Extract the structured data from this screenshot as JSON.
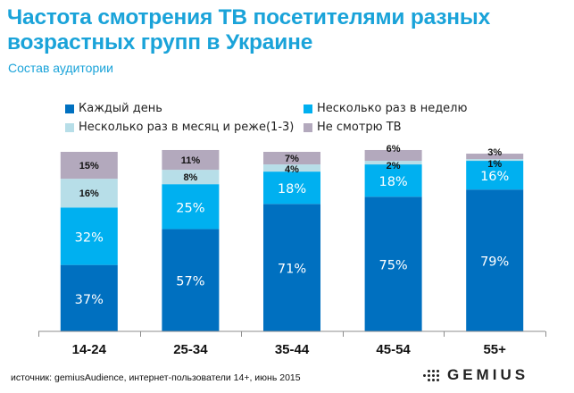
{
  "header": {
    "title": "Частота смотрения ТВ посетителями разных возрастных групп в Украине",
    "subtitle": "Состав аудитории"
  },
  "footer": {
    "source": "источник: gemiusAudience, интернет-пользователи 14+, июнь 2015",
    "logo_text": "GEMIUS",
    "logo_icon": "gemius-dots-icon"
  },
  "chart_data": {
    "type": "bar",
    "stacked": true,
    "percent_stacked": true,
    "title": "Частота смотрения ТВ посетителями разных возрастных групп в Украине",
    "subtitle": "Состав аудитории",
    "xlabel": "",
    "ylabel": "",
    "ylim": [
      0,
      100
    ],
    "grid": false,
    "legend_position": "top",
    "categories": [
      "14-24",
      "25-34",
      "35-44",
      "45-54",
      "55+"
    ],
    "series": [
      {
        "name": "Каждый день",
        "color": "#0070c0",
        "label_color": "#ffffff",
        "values": [
          37,
          57,
          71,
          75,
          79
        ]
      },
      {
        "name": "Несколько раз в неделю",
        "color": "#00b0f0",
        "label_color": "#ffffff",
        "values": [
          32,
          25,
          18,
          18,
          16
        ]
      },
      {
        "name": "Несколько раз в месяц и реже(1-3)",
        "color": "#b7dee8",
        "label_color": "#111111",
        "values": [
          16,
          8,
          4,
          2,
          1
        ]
      },
      {
        "name": "Не смотрю ТВ",
        "color": "#b3a9bd",
        "label_color": "#111111",
        "values": [
          15,
          11,
          7,
          6,
          3
        ]
      }
    ],
    "value_suffix": "%"
  }
}
